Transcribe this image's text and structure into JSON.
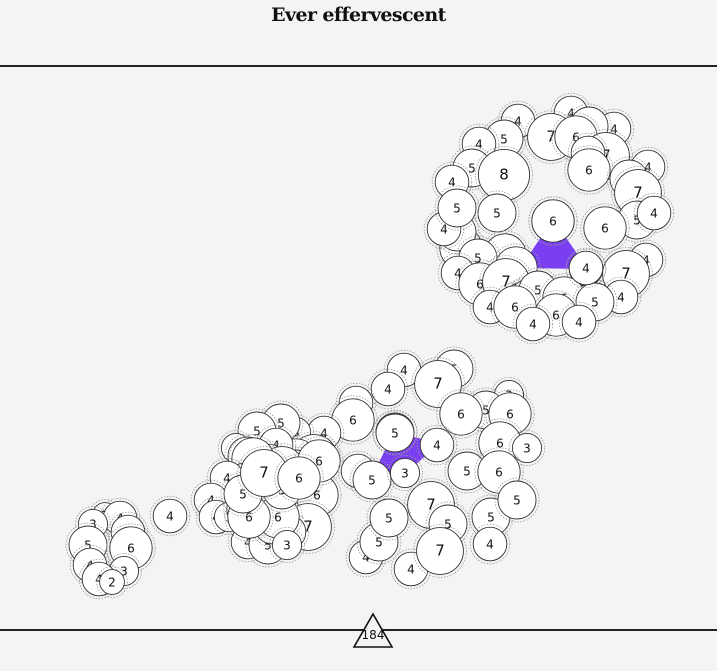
{
  "title": "Ever effervescent",
  "score": "184",
  "colors": {
    "background": "#f5f4f5",
    "bubble_fill": "#ffffff",
    "bubble_stroke": "#333333",
    "halo_stroke": "#999999",
    "selection": "#7b3ff2"
  },
  "bubbles": [
    {
      "v": "4",
      "c": 1
    },
    {
      "v": "4",
      "c": 1
    },
    {
      "v": "5",
      "c": 1
    },
    {
      "v": "7",
      "c": 1
    },
    {
      "v": "4",
      "c": 1
    },
    {
      "v": "5",
      "c": 1
    },
    {
      "v": "6",
      "c": 1
    },
    {
      "v": "4",
      "c": 1
    },
    {
      "v": "7",
      "c": 1
    },
    {
      "v": "4",
      "c": 1
    },
    {
      "v": "5",
      "c": 1
    },
    {
      "v": "4",
      "c": 1
    },
    {
      "v": "8",
      "c": 1
    },
    {
      "v": "6",
      "c": 1
    },
    {
      "v": "4",
      "c": 1
    },
    {
      "v": "5",
      "c": 1
    },
    {
      "v": "7",
      "c": 1
    },
    {
      "v": "5",
      "c": 1
    },
    {
      "v": "5",
      "c": 1
    },
    {
      "v": "4",
      "c": 1
    },
    {
      "v": "6",
      "c": 1
    },
    {
      "v": "6",
      "c": 1
    },
    {
      "v": "6",
      "c": 1
    },
    {
      "v": "5",
      "c": 1
    },
    {
      "v": "4",
      "c": 1
    },
    {
      "v": "4",
      "c": 1
    },
    {
      "v": "6",
      "c": 1
    },
    {
      "v": "5",
      "c": 1
    },
    {
      "v": "6",
      "c": 1
    },
    {
      "v": "7",
      "c": 1
    },
    {
      "v": "4",
      "c": 1
    },
    {
      "v": "4",
      "c": 1
    },
    {
      "v": "6",
      "c": 1
    },
    {
      "v": "7",
      "c": 1
    },
    {
      "v": "4",
      "c": 1
    },
    {
      "v": "6",
      "c": 1
    },
    {
      "v": "5",
      "c": 1
    },
    {
      "v": "6",
      "c": 1
    },
    {
      "v": "4",
      "c": 1
    },
    {
      "v": "6",
      "c": 1
    },
    {
      "v": "5",
      "c": 1
    },
    {
      "v": "4",
      "c": 1
    },
    {
      "v": "6",
      "c": 1
    },
    {
      "v": "4",
      "c": 1
    },
    {
      "v": "4",
      "c": 1
    },
    {
      "v": "5",
      "c": 1
    },
    {
      "v": "4",
      "c": 2
    },
    {
      "v": "5",
      "c": 2
    },
    {
      "v": "4",
      "c": 2
    },
    {
      "v": "7",
      "c": 2
    },
    {
      "v": "4",
      "c": 2
    },
    {
      "v": "6",
      "c": 2
    },
    {
      "v": "3",
      "c": 2
    },
    {
      "v": "5",
      "c": 2
    },
    {
      "v": "6",
      "c": 2
    },
    {
      "v": "6",
      "c": 2
    },
    {
      "v": "4",
      "c": 2
    },
    {
      "v": "6",
      "c": 2
    },
    {
      "v": "5",
      "c": 2
    },
    {
      "v": "3",
      "c": 2
    },
    {
      "v": "5",
      "c": 2
    },
    {
      "v": "6",
      "c": 2
    },
    {
      "v": "3",
      "c": 2
    },
    {
      "v": "5",
      "c": 2
    },
    {
      "v": "5",
      "c": 2
    },
    {
      "v": "7",
      "c": 2
    },
    {
      "v": "6",
      "c": 2
    },
    {
      "v": "4",
      "c": 2
    },
    {
      "v": "5",
      "c": 2
    },
    {
      "v": "3",
      "c": 2
    },
    {
      "v": "5",
      "c": 2
    },
    {
      "v": "4",
      "c": 2
    },
    {
      "v": "7",
      "c": 2
    },
    {
      "v": "6",
      "c": 2
    },
    {
      "v": "5",
      "c": 2
    },
    {
      "v": "4",
      "c": 2
    },
    {
      "v": "3",
      "c": 2
    },
    {
      "v": "7",
      "c": 2
    },
    {
      "v": "4",
      "c": 3
    },
    {
      "v": "4",
      "c": 3
    },
    {
      "v": "3",
      "c": 3
    },
    {
      "v": "4",
      "c": 3
    },
    {
      "v": "5",
      "c": 3
    },
    {
      "v": "6",
      "c": 3
    },
    {
      "v": "6",
      "c": 3
    },
    {
      "v": "3",
      "c": 3
    },
    {
      "v": "6",
      "c": 3
    },
    {
      "v": "7",
      "c": 3
    },
    {
      "v": "6",
      "c": 3
    },
    {
      "v": "6",
      "c": 3
    },
    {
      "v": "4",
      "c": 3
    },
    {
      "v": "5",
      "c": 3
    },
    {
      "v": "6",
      "c": 3
    },
    {
      "v": "6",
      "c": 3
    },
    {
      "v": "5",
      "c": 3
    },
    {
      "v": "4",
      "c": 3
    },
    {
      "v": "5",
      "c": 3
    },
    {
      "v": "7",
      "c": 3
    },
    {
      "v": "6",
      "c": 3
    },
    {
      "v": "6",
      "c": 3
    },
    {
      "v": "4",
      "c": 3
    },
    {
      "v": "7",
      "c": 3
    },
    {
      "v": "5",
      "c": 3
    },
    {
      "v": "5",
      "c": 3
    },
    {
      "v": "4",
      "c": 3
    },
    {
      "v": "5",
      "c": 3
    },
    {
      "v": "4",
      "c": 3
    },
    {
      "v": "5",
      "c": 3
    },
    {
      "v": "3",
      "c": 3
    },
    {
      "v": "7",
      "c": 3
    },
    {
      "v": "5",
      "c": 3
    },
    {
      "v": "4",
      "c": 4
    },
    {
      "v": "2",
      "c": 5
    },
    {
      "v": "4",
      "c": 5
    },
    {
      "v": "3",
      "c": 5
    },
    {
      "v": "5",
      "c": 5
    },
    {
      "v": "4",
      "c": 5
    },
    {
      "v": "6",
      "c": 5
    },
    {
      "v": "4",
      "c": 5
    },
    {
      "v": "3",
      "c": 5
    },
    {
      "v": "4",
      "c": 5
    },
    {
      "v": "2",
      "c": 5
    }
  ],
  "selections": [
    {
      "members": [
        "6",
        "4",
        "4"
      ]
    },
    {
      "members": [
        "5",
        "4",
        "5",
        "3"
      ]
    }
  ]
}
